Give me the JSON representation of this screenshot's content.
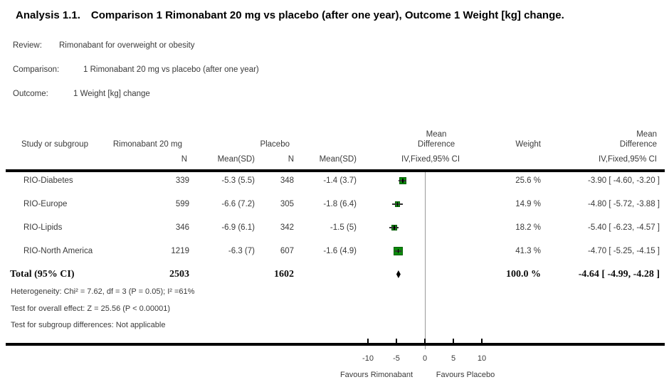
{
  "title": {
    "label": "Analysis 1.1.",
    "text": "Comparison 1 Rimonabant 20 mg vs placebo (after one year), Outcome 1 Weight [kg] change."
  },
  "meta": {
    "review_label": "Review:",
    "review": "Rimonabant for overweight or obesity",
    "comparison_label": "Comparison:",
    "comparison": "1 Rimonabant 20 mg vs placebo (after one year)",
    "outcome_label": "Outcome:",
    "outcome": "1 Weight [kg] change"
  },
  "table": {
    "headers": {
      "study": "Study or subgroup",
      "treatment_group": "Rimonabant 20 mg",
      "control_group": "Placebo",
      "n": "N",
      "mean_sd": "Mean(SD)",
      "md_line1": "Mean",
      "md_line2": "Difference",
      "weight": "Weight",
      "ci_method": "IV,Fixed,95% CI"
    },
    "rows": [
      {
        "study": "RIO-Diabetes",
        "n1": "339",
        "mean_sd1": "-5.3 (5.5)",
        "n2": "348",
        "mean_sd2": "-1.4 (3.7)",
        "weight": "25.6 %",
        "md": "-3.90 [ -4.60, -3.20 ]"
      },
      {
        "study": "RIO-Europe",
        "n1": "599",
        "mean_sd1": "-6.6 (7.2)",
        "n2": "305",
        "mean_sd2": "-1.8 (6.4)",
        "weight": "14.9 %",
        "md": "-4.80 [ -5.72, -3.88 ]"
      },
      {
        "study": "RIO-Lipids",
        "n1": "346",
        "mean_sd1": "-6.9 (6.1)",
        "n2": "342",
        "mean_sd2": "-1.5 (5)",
        "weight": "18.2 %",
        "md": "-5.40 [ -6.23, -4.57 ]"
      },
      {
        "study": "RIO-North America",
        "n1": "1219",
        "mean_sd1": "-6.3 (7)",
        "n2": "607",
        "mean_sd2": "-1.6 (4.9)",
        "weight": "41.3 %",
        "md": "-4.70 [ -5.25, -4.15 ]"
      }
    ],
    "total": {
      "label": "Total (95% CI)",
      "n1": "2503",
      "n2": "1602",
      "weight": "100.0 %",
      "md": "-4.64 [ -4.99, -4.28 ]"
    },
    "footnotes": {
      "heterogeneity": "Heterogeneity: Chi² = 7.62, df = 3 (P = 0.05); I² =61%",
      "overall_effect": "Test for overall effect: Z = 25.56 (P < 0.00001)",
      "subgroup": "Test for subgroup differences: Not applicable"
    }
  },
  "chart_data": {
    "type": "forest",
    "effect_measure": "Mean Difference, IV, Fixed, 95% CI",
    "x_axis": {
      "ticks": [
        -10,
        -5,
        0,
        5,
        10
      ],
      "zero_line": 0,
      "favours_left": "Favours Rimonabant",
      "favours_right": "Favours Placebo"
    },
    "studies": [
      {
        "name": "RIO-Diabetes",
        "treatment_n": 339,
        "treatment_mean": -5.3,
        "treatment_sd": 5.5,
        "control_n": 348,
        "control_mean": -1.4,
        "control_sd": 3.7,
        "weight_pct": 25.6,
        "md": -3.9,
        "ci_low": -4.6,
        "ci_high": -3.2
      },
      {
        "name": "RIO-Europe",
        "treatment_n": 599,
        "treatment_mean": -6.6,
        "treatment_sd": 7.2,
        "control_n": 305,
        "control_mean": -1.8,
        "control_sd": 6.4,
        "weight_pct": 14.9,
        "md": -4.8,
        "ci_low": -5.72,
        "ci_high": -3.88
      },
      {
        "name": "RIO-Lipids",
        "treatment_n": 346,
        "treatment_mean": -6.9,
        "treatment_sd": 6.1,
        "control_n": 342,
        "control_mean": -1.5,
        "control_sd": 5,
        "weight_pct": 18.2,
        "md": -5.4,
        "ci_low": -6.23,
        "ci_high": -4.57
      },
      {
        "name": "RIO-North America",
        "treatment_n": 1219,
        "treatment_mean": -6.3,
        "treatment_sd": 7,
        "control_n": 607,
        "control_mean": -1.6,
        "control_sd": 4.9,
        "weight_pct": 41.3,
        "md": -4.7,
        "ci_low": -5.25,
        "ci_high": -4.15
      }
    ],
    "total": {
      "treatment_n": 2503,
      "control_n": 1602,
      "weight_pct": 100.0,
      "md": -4.64,
      "ci_low": -4.99,
      "ci_high": -4.28
    },
    "marker_color": "#0b8a0b",
    "marker_border_color": "#076007",
    "whisker_color": "#333333",
    "diamond_color": "#000000",
    "zero_line_color": "#9a9a9a"
  }
}
